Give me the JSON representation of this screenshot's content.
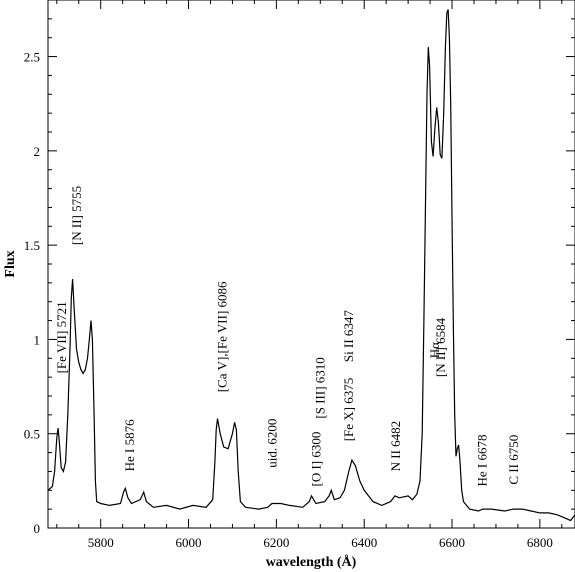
{
  "chart_data": {
    "type": "line",
    "xlabel": "wavelength (Å)",
    "ylabel": "Flux",
    "xlim": [
      5680,
      6880
    ],
    "ylim": [
      0,
      2.8
    ],
    "xticks": [
      "5800",
      "6000",
      "6200",
      "6400",
      "6600",
      "6800"
    ],
    "yticks": [
      "0",
      "0.5",
      "1",
      "1.5",
      "2",
      "2.5"
    ],
    "grid": false,
    "line_color": "#000000",
    "annotations": [
      {
        "text": "[Fe VII] 5721",
        "x": 5721,
        "y": 0.82
      },
      {
        "text": "[N II] 5755",
        "x": 5755,
        "y": 1.5
      },
      {
        "text": "He I 5876",
        "x": 5876,
        "y": 0.3
      },
      {
        "text": "[Ca V],[Fe VII] 6086",
        "x": 6086,
        "y": 0.72
      },
      {
        "text": "uid. 6200",
        "x": 6200,
        "y": 0.32
      },
      {
        "text": "[O I] 6300",
        "x": 6300,
        "y": 0.22
      },
      {
        "text": "[S III] 6310",
        "x": 6310,
        "y": 0.58
      },
      {
        "text": "[Fe X] 6375",
        "x": 6375,
        "y": 0.46
      },
      {
        "text": "Si II 6347",
        "x": 6375,
        "y": 0.88
      },
      {
        "text": "N II 6482",
        "x": 6482,
        "y": 0.3
      },
      {
        "text": "Hα",
        "x": 6570,
        "y": 0.9
      },
      {
        "text": "[N II] 6584",
        "x": 6584,
        "y": 0.8
      },
      {
        "text": "He I 6678",
        "x": 6678,
        "y": 0.22
      },
      {
        "text": "C II 6750",
        "x": 6750,
        "y": 0.23
      }
    ],
    "series": [
      {
        "points": [
          [
            5680,
            0.2
          ],
          [
            5690,
            0.22
          ],
          [
            5695,
            0.3
          ],
          [
            5700,
            0.48
          ],
          [
            5703,
            0.53
          ],
          [
            5706,
            0.45
          ],
          [
            5710,
            0.32
          ],
          [
            5715,
            0.3
          ],
          [
            5720,
            0.35
          ],
          [
            5725,
            0.6
          ],
          [
            5730,
            0.95
          ],
          [
            5733,
            1.22
          ],
          [
            5736,
            1.32
          ],
          [
            5740,
            1.15
          ],
          [
            5745,
            0.95
          ],
          [
            5750,
            0.88
          ],
          [
            5755,
            0.84
          ],
          [
            5760,
            0.82
          ],
          [
            5765,
            0.84
          ],
          [
            5770,
            0.9
          ],
          [
            5775,
            1.02
          ],
          [
            5778,
            1.1
          ],
          [
            5781,
            1.0
          ],
          [
            5785,
            0.6
          ],
          [
            5788,
            0.25
          ],
          [
            5791,
            0.14
          ],
          [
            5800,
            0.13
          ],
          [
            5820,
            0.12
          ],
          [
            5845,
            0.13
          ],
          [
            5852,
            0.19
          ],
          [
            5856,
            0.21
          ],
          [
            5862,
            0.16
          ],
          [
            5870,
            0.13
          ],
          [
            5890,
            0.15
          ],
          [
            5898,
            0.19
          ],
          [
            5904,
            0.14
          ],
          [
            5920,
            0.11
          ],
          [
            5950,
            0.12
          ],
          [
            5980,
            0.1
          ],
          [
            6010,
            0.12
          ],
          [
            6040,
            0.11
          ],
          [
            6055,
            0.15
          ],
          [
            6060,
            0.35
          ],
          [
            6063,
            0.52
          ],
          [
            6066,
            0.58
          ],
          [
            6072,
            0.5
          ],
          [
            6080,
            0.43
          ],
          [
            6090,
            0.42
          ],
          [
            6100,
            0.5
          ],
          [
            6105,
            0.56
          ],
          [
            6109,
            0.52
          ],
          [
            6113,
            0.3
          ],
          [
            6118,
            0.14
          ],
          [
            6130,
            0.11
          ],
          [
            6160,
            0.1
          ],
          [
            6180,
            0.11
          ],
          [
            6190,
            0.13
          ],
          [
            6210,
            0.13
          ],
          [
            6230,
            0.12
          ],
          [
            6260,
            0.11
          ],
          [
            6275,
            0.14
          ],
          [
            6280,
            0.17
          ],
          [
            6290,
            0.13
          ],
          [
            6310,
            0.14
          ],
          [
            6320,
            0.17
          ],
          [
            6325,
            0.2
          ],
          [
            6332,
            0.15
          ],
          [
            6345,
            0.16
          ],
          [
            6355,
            0.2
          ],
          [
            6365,
            0.3
          ],
          [
            6372,
            0.36
          ],
          [
            6380,
            0.33
          ],
          [
            6390,
            0.25
          ],
          [
            6400,
            0.2
          ],
          [
            6420,
            0.14
          ],
          [
            6440,
            0.12
          ],
          [
            6460,
            0.14
          ],
          [
            6470,
            0.17
          ],
          [
            6480,
            0.16
          ],
          [
            6500,
            0.17
          ],
          [
            6510,
            0.15
          ],
          [
            6520,
            0.18
          ],
          [
            6527,
            0.25
          ],
          [
            6532,
            0.5
          ],
          [
            6536,
            1.1
          ],
          [
            6540,
            1.8
          ],
          [
            6543,
            2.3
          ],
          [
            6546,
            2.55
          ],
          [
            6549,
            2.45
          ],
          [
            6553,
            2.05
          ],
          [
            6557,
            1.97
          ],
          [
            6561,
            2.12
          ],
          [
            6565,
            2.23
          ],
          [
            6569,
            2.15
          ],
          [
            6573,
            1.98
          ],
          [
            6577,
            1.96
          ],
          [
            6581,
            2.2
          ],
          [
            6585,
            2.55
          ],
          [
            6588,
            2.73
          ],
          [
            6591,
            2.75
          ],
          [
            6594,
            2.6
          ],
          [
            6597,
            2.25
          ],
          [
            6600,
            1.65
          ],
          [
            6603,
            1.05
          ],
          [
            6606,
            0.6
          ],
          [
            6609,
            0.38
          ],
          [
            6612,
            0.42
          ],
          [
            6615,
            0.44
          ],
          [
            6618,
            0.36
          ],
          [
            6622,
            0.2
          ],
          [
            6626,
            0.14
          ],
          [
            6640,
            0.1
          ],
          [
            6660,
            0.09
          ],
          [
            6670,
            0.1
          ],
          [
            6690,
            0.1
          ],
          [
            6720,
            0.09
          ],
          [
            6740,
            0.1
          ],
          [
            6760,
            0.1
          ],
          [
            6780,
            0.09
          ],
          [
            6800,
            0.08
          ],
          [
            6820,
            0.08
          ],
          [
            6840,
            0.07
          ],
          [
            6860,
            0.05
          ],
          [
            6870,
            0.04
          ],
          [
            6880,
            0.07
          ]
        ]
      }
    ]
  }
}
